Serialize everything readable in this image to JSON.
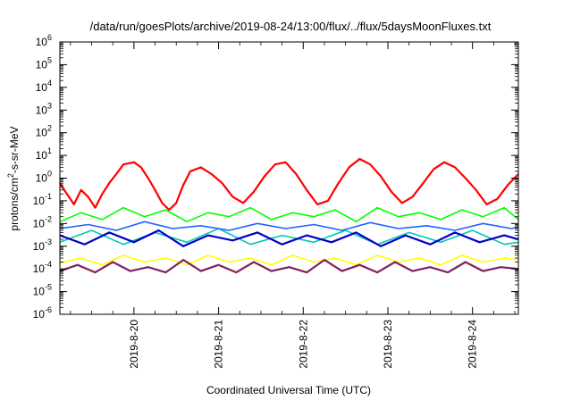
{
  "chart_data": {
    "type": "line",
    "title": "/data/run/goesPlots/archive/2019-08-24/13:00/flux/../flux/5daysMoonFluxes.txt",
    "xlabel": "Coordinated Universal Time (UTC)",
    "ylabel_parts": {
      "before": "protons/cm",
      "sup": "2",
      "after": "-s-sr-MeV"
    },
    "y_scale": "log",
    "ylim_exponents": [
      -6,
      6
    ],
    "y_ticks": [
      {
        "base": "10",
        "exp": "-6"
      },
      {
        "base": "10",
        "exp": "-5"
      },
      {
        "base": "10",
        "exp": "-4"
      },
      {
        "base": "10",
        "exp": "-3"
      },
      {
        "base": "10",
        "exp": "-2"
      },
      {
        "base": "10",
        "exp": "-1"
      },
      {
        "base": "10",
        "exp": "0"
      },
      {
        "base": "10",
        "exp": "1"
      },
      {
        "base": "10",
        "exp": "2"
      },
      {
        "base": "10",
        "exp": "3"
      },
      {
        "base": "10",
        "exp": "4"
      },
      {
        "base": "10",
        "exp": "5"
      },
      {
        "base": "10",
        "exp": "6"
      }
    ],
    "x_range": [
      "2019-08-19 03:00",
      "2019-08-24 13:00"
    ],
    "x_ticks": [
      {
        "label": "2019-8-20",
        "date": "2019-08-20 00:00"
      },
      {
        "label": "2019-8-21",
        "date": "2019-08-21 00:00"
      },
      {
        "label": "2019-8-22",
        "date": "2019-08-22 00:00"
      },
      {
        "label": "2019-8-23",
        "date": "2019-08-23 00:00"
      },
      {
        "label": "2019-8-24",
        "date": "2019-08-24 00:00"
      }
    ],
    "grid": false,
    "legend": "none",
    "series": [
      {
        "color": "#ff0000",
        "width": 2.2,
        "x": [
          "2019-08-19 03:00",
          "2019-08-19 05:00",
          "2019-08-19 07:00",
          "2019-08-19 09:00",
          "2019-08-19 11:00",
          "2019-08-19 13:00",
          "2019-08-19 15:00",
          "2019-08-19 17:00",
          "2019-08-19 19:00",
          "2019-08-19 21:00",
          "2019-08-20 00:00",
          "2019-08-20 02:00",
          "2019-08-20 04:00",
          "2019-08-20 06:00",
          "2019-08-20 08:00",
          "2019-08-20 10:00",
          "2019-08-20 12:00",
          "2019-08-20 14:00",
          "2019-08-20 16:00",
          "2019-08-20 19:00",
          "2019-08-20 22:00",
          "2019-08-21 01:00",
          "2019-08-21 04:00",
          "2019-08-21 07:00",
          "2019-08-21 10:00",
          "2019-08-21 13:00",
          "2019-08-21 16:00",
          "2019-08-21 19:00",
          "2019-08-21 22:00",
          "2019-08-22 01:00",
          "2019-08-22 04:00",
          "2019-08-22 07:00",
          "2019-08-22 10:00",
          "2019-08-22 13:00",
          "2019-08-22 16:00",
          "2019-08-22 19:00",
          "2019-08-22 22:00",
          "2019-08-23 01:00",
          "2019-08-23 04:00",
          "2019-08-23 07:00",
          "2019-08-23 10:00",
          "2019-08-23 13:00",
          "2019-08-23 16:00",
          "2019-08-23 19:00",
          "2019-08-23 22:00",
          "2019-08-24 01:00",
          "2019-08-24 04:00",
          "2019-08-24 07:00",
          "2019-08-24 10:00",
          "2019-08-24 13:00"
        ],
        "y": [
          0.6,
          0.2,
          0.07,
          0.3,
          0.15,
          0.05,
          0.2,
          0.6,
          1.5,
          4,
          5,
          3,
          1,
          0.3,
          0.08,
          0.04,
          0.08,
          0.5,
          2,
          3,
          1.5,
          0.6,
          0.15,
          0.08,
          0.25,
          1.2,
          4,
          5,
          1.5,
          0.3,
          0.07,
          0.1,
          0.6,
          3,
          7,
          4,
          1.2,
          0.25,
          0.08,
          0.15,
          0.6,
          2.5,
          5,
          3,
          1,
          0.3,
          0.07,
          0.12,
          0.5,
          1.5
        ]
      },
      {
        "color": "#00ff00",
        "width": 1.6,
        "x": [
          "2019-08-19 03:00",
          "2019-08-19 09:00",
          "2019-08-19 15:00",
          "2019-08-19 21:00",
          "2019-08-20 03:00",
          "2019-08-20 09:00",
          "2019-08-20 15:00",
          "2019-08-20 21:00",
          "2019-08-21 03:00",
          "2019-08-21 09:00",
          "2019-08-21 15:00",
          "2019-08-21 21:00",
          "2019-08-22 03:00",
          "2019-08-22 09:00",
          "2019-08-22 15:00",
          "2019-08-22 21:00",
          "2019-08-23 03:00",
          "2019-08-23 09:00",
          "2019-08-23 15:00",
          "2019-08-23 21:00",
          "2019-08-24 03:00",
          "2019-08-24 09:00",
          "2019-08-24 13:00"
        ],
        "y": [
          0.012,
          0.03,
          0.015,
          0.05,
          0.02,
          0.04,
          0.012,
          0.03,
          0.02,
          0.05,
          0.015,
          0.03,
          0.02,
          0.04,
          0.012,
          0.05,
          0.02,
          0.03,
          0.015,
          0.04,
          0.02,
          0.05,
          0.015
        ]
      },
      {
        "color": "#00c8b4",
        "width": 1.6,
        "x": [
          "2019-08-19 03:00",
          "2019-08-19 12:00",
          "2019-08-19 21:00",
          "2019-08-20 06:00",
          "2019-08-20 15:00",
          "2019-08-21 00:00",
          "2019-08-21 09:00",
          "2019-08-21 18:00",
          "2019-08-22 03:00",
          "2019-08-22 12:00",
          "2019-08-22 21:00",
          "2019-08-23 06:00",
          "2019-08-23 15:00",
          "2019-08-24 00:00",
          "2019-08-24 09:00",
          "2019-08-24 13:00"
        ],
        "y": [
          0.0015,
          0.005,
          0.0012,
          0.004,
          0.0015,
          0.006,
          0.0012,
          0.003,
          0.0015,
          0.005,
          0.0012,
          0.004,
          0.0015,
          0.005,
          0.0012,
          0.0015
        ]
      },
      {
        "color": "#1e64ff",
        "width": 1.6,
        "x": [
          "2019-08-19 03:00",
          "2019-08-19 11:00",
          "2019-08-19 19:00",
          "2019-08-20 03:00",
          "2019-08-20 11:00",
          "2019-08-20 19:00",
          "2019-08-21 03:00",
          "2019-08-21 11:00",
          "2019-08-21 19:00",
          "2019-08-22 03:00",
          "2019-08-22 11:00",
          "2019-08-22 19:00",
          "2019-08-23 03:00",
          "2019-08-23 11:00",
          "2019-08-23 19:00",
          "2019-08-24 03:00",
          "2019-08-24 11:00",
          "2019-08-24 13:00"
        ],
        "y": [
          0.006,
          0.009,
          0.005,
          0.012,
          0.006,
          0.008,
          0.005,
          0.01,
          0.006,
          0.009,
          0.005,
          0.011,
          0.006,
          0.008,
          0.005,
          0.01,
          0.006,
          0.007
        ]
      },
      {
        "color": "#0000c8",
        "width": 2.2,
        "x": [
          "2019-08-19 03:00",
          "2019-08-19 10:00",
          "2019-08-19 17:00",
          "2019-08-20 00:00",
          "2019-08-20 07:00",
          "2019-08-20 14:00",
          "2019-08-20 21:00",
          "2019-08-21 04:00",
          "2019-08-21 11:00",
          "2019-08-21 18:00",
          "2019-08-22 01:00",
          "2019-08-22 08:00",
          "2019-08-22 15:00",
          "2019-08-22 22:00",
          "2019-08-23 05:00",
          "2019-08-23 12:00",
          "2019-08-23 19:00",
          "2019-08-24 02:00",
          "2019-08-24 09:00",
          "2019-08-24 13:00"
        ],
        "y": [
          0.003,
          0.0012,
          0.004,
          0.0015,
          0.005,
          0.001,
          0.003,
          0.0018,
          0.004,
          0.0012,
          0.003,
          0.0015,
          0.004,
          0.001,
          0.003,
          0.0012,
          0.004,
          0.0015,
          0.003,
          0.002
        ]
      },
      {
        "color": "#ffff00",
        "width": 1.6,
        "x": [
          "2019-08-19 03:00",
          "2019-08-19 09:00",
          "2019-08-19 15:00",
          "2019-08-19 21:00",
          "2019-08-20 03:00",
          "2019-08-20 09:00",
          "2019-08-20 15:00",
          "2019-08-20 21:00",
          "2019-08-21 03:00",
          "2019-08-21 09:00",
          "2019-08-21 15:00",
          "2019-08-21 21:00",
          "2019-08-22 03:00",
          "2019-08-22 09:00",
          "2019-08-22 15:00",
          "2019-08-22 21:00",
          "2019-08-23 03:00",
          "2019-08-23 09:00",
          "2019-08-23 15:00",
          "2019-08-23 21:00",
          "2019-08-24 03:00",
          "2019-08-24 09:00",
          "2019-08-24 13:00"
        ],
        "y": [
          0.00018,
          0.0003,
          0.00015,
          0.0004,
          0.0002,
          0.0003,
          0.00015,
          0.0004,
          0.0002,
          0.0003,
          0.00015,
          0.0004,
          0.0002,
          0.0003,
          0.00015,
          0.0004,
          0.0002,
          0.0003,
          0.00015,
          0.0004,
          0.0002,
          0.0003,
          0.00025
        ]
      },
      {
        "color": "#802060",
        "width": 2.2,
        "x": [
          "2019-08-19 03:00",
          "2019-08-19 08:00",
          "2019-08-19 13:00",
          "2019-08-19 18:00",
          "2019-08-19 23:00",
          "2019-08-20 04:00",
          "2019-08-20 09:00",
          "2019-08-20 14:00",
          "2019-08-20 19:00",
          "2019-08-21 00:00",
          "2019-08-21 05:00",
          "2019-08-21 10:00",
          "2019-08-21 15:00",
          "2019-08-21 20:00",
          "2019-08-22 01:00",
          "2019-08-22 06:00",
          "2019-08-22 11:00",
          "2019-08-22 16:00",
          "2019-08-22 21:00",
          "2019-08-23 02:00",
          "2019-08-23 07:00",
          "2019-08-23 12:00",
          "2019-08-23 17:00",
          "2019-08-23 22:00",
          "2019-08-24 03:00",
          "2019-08-24 08:00",
          "2019-08-24 13:00"
        ],
        "y": [
          8e-05,
          0.00015,
          7e-05,
          0.0002,
          8e-05,
          0.00012,
          7e-05,
          0.00025,
          8e-05,
          0.00015,
          7e-05,
          0.0002,
          8e-05,
          0.00012,
          7e-05,
          0.00025,
          8e-05,
          0.00015,
          7e-05,
          0.0002,
          8e-05,
          0.00012,
          7e-05,
          0.0002,
          8e-05,
          0.00012,
          0.0001
        ]
      }
    ]
  }
}
